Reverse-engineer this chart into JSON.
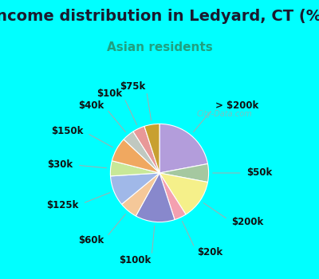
{
  "title": "Income distribution in Ledyard, CT (%)",
  "subtitle": "Asian residents",
  "title_fontsize": 14,
  "subtitle_fontsize": 11,
  "bg_color": "#00ffff",
  "chart_bg": "#d4ede4",
  "watermark": "City-Data.com",
  "labels": [
    "> $200k",
    "$50k",
    "$200k",
    "$20k",
    "$100k",
    "$60k",
    "$125k",
    "$30k",
    "$150k",
    "$40k",
    "$10k",
    "$75k"
  ],
  "values": [
    22,
    6,
    13,
    4,
    13,
    6,
    10,
    5,
    8,
    4,
    4,
    5
  ],
  "colors": [
    "#b39ddb",
    "#a5c8a0",
    "#f5f08a",
    "#f4a0b0",
    "#8888cc",
    "#f5c899",
    "#a0b8e8",
    "#c8e898",
    "#f0a860",
    "#c0c8c0",
    "#e89898",
    "#c8a030"
  ],
  "label_fontsize": 8.5,
  "subtitle_color": "#20a080"
}
